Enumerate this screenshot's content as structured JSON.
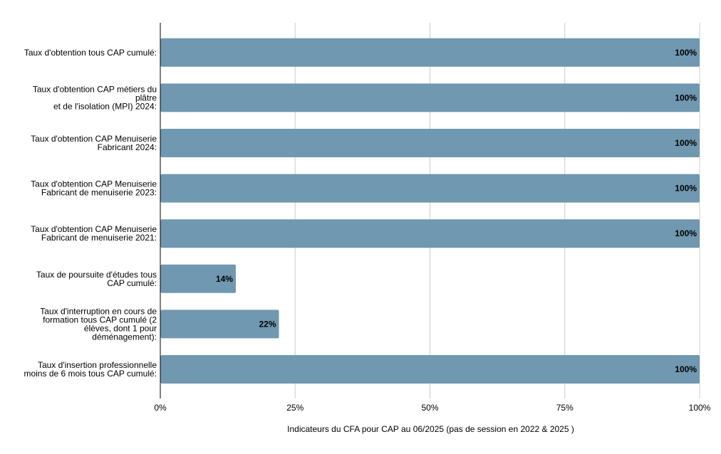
{
  "chart_data": {
    "type": "bar",
    "orientation": "horizontal",
    "categories": [
      [
        "Taux d'obtention tous CAP cumulé:"
      ],
      [
        "Taux d'obtention CAP métiers du",
        "plâtre",
        "et de l'isolation (MPI) 2024:"
      ],
      [
        "Taux d'obtention CAP Menuiserie",
        "Fabricant 2024:"
      ],
      [
        "Taux d'obtention CAP Menuiserie",
        "Fabricant de menuiserie 2023:"
      ],
      [
        "Taux d'obtention CAP Menuiserie",
        "Fabricant de menuiserie 2021:"
      ],
      [
        "Taux de poursuite d'études tous",
        "CAP cumulé:"
      ],
      [
        "Taux d'interruption en cours de",
        "formation tous CAP cumulé (2",
        "élèves, dont 1 pour",
        "déménagement):"
      ],
      [
        "Taux d'insertion professionnelle",
        "moins de 6 mois tous CAP cumulé:"
      ]
    ],
    "values": [
      100,
      100,
      100,
      100,
      100,
      14,
      22,
      100
    ],
    "value_labels": [
      "100%",
      "100%",
      "100%",
      "100%",
      "100%",
      "14%",
      "22%",
      "100%"
    ],
    "xlabel": "Indicateurs du CFA pour CAP au 06/2025 (pas de session en 2022 & 2025 )",
    "ylabel": "",
    "xlim": [
      0,
      100
    ],
    "x_ticks": [
      0,
      25,
      50,
      75,
      100
    ],
    "x_tick_labels": [
      "0%",
      "25%",
      "50%",
      "75%",
      "100%"
    ],
    "grid": true,
    "colors": {
      "bar": "#7098b0",
      "grid": "#cccccc",
      "axis": "#000000"
    }
  }
}
